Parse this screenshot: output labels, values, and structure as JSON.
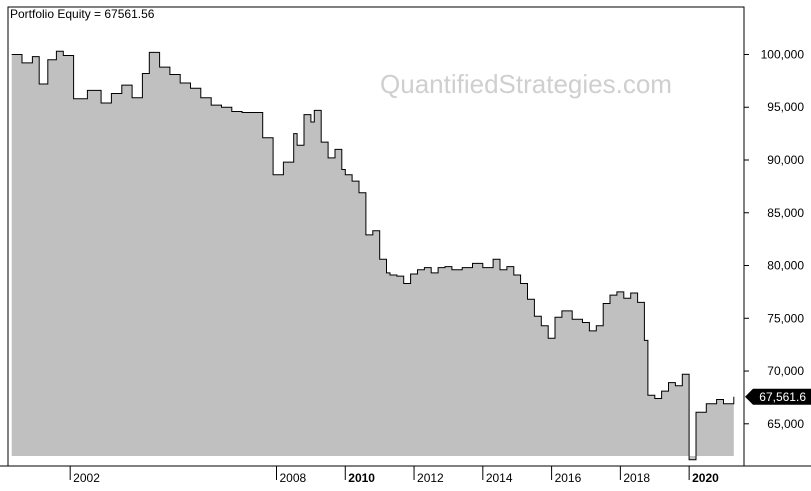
{
  "chart_data": {
    "type": "area",
    "title": "Portfolio Equity = 67561.56",
    "watermark": "QuantifiedStrategies.com",
    "last_value_label": "67,561.6",
    "xlabel": "",
    "ylabel": "",
    "x_ticks": [
      {
        "label": "2002",
        "x": 2002,
        "bold": false
      },
      {
        "label": "2008",
        "x": 2008,
        "bold": false
      },
      {
        "label": "2010",
        "x": 2010,
        "bold": true
      },
      {
        "label": "2012",
        "x": 2012,
        "bold": false
      },
      {
        "label": "2014",
        "x": 2014,
        "bold": false
      },
      {
        "label": "2016",
        "x": 2016,
        "bold": false
      },
      {
        "label": "2018",
        "x": 2018,
        "bold": false
      },
      {
        "label": "2020",
        "x": 2020,
        "bold": true
      }
    ],
    "y_ticks": [
      {
        "label": "100,000",
        "value": 100000
      },
      {
        "label": "95,000",
        "value": 95000
      },
      {
        "label": "90,000",
        "value": 90000
      },
      {
        "label": "85,000",
        "value": 85000
      },
      {
        "label": "80,000",
        "value": 80000
      },
      {
        "label": "75,000",
        "value": 75000
      },
      {
        "label": "70,000",
        "value": 70000
      },
      {
        "label": "65,000",
        "value": 65000
      }
    ],
    "ylim": [
      61000,
      104500
    ],
    "grid": false,
    "legend": "none",
    "colors": {
      "fill": "#c0c0c0",
      "line": "#000000",
      "badge": "#000000",
      "badge_text": "#ffffff",
      "watermark": "#cfcfcf"
    },
    "series": [
      {
        "x": [
          2000.3,
          2000.6,
          2000.9,
          2001.1,
          2001.35,
          2001.6,
          2001.8,
          2002.1,
          2002.5,
          2002.9,
          2003.2,
          2003.5,
          2003.8,
          2004.1,
          2004.3,
          2004.6,
          2004.9,
          2005.2,
          2005.5,
          2005.8,
          2006.1,
          2006.4,
          2006.7,
          2007.0,
          2007.3,
          2007.6,
          2007.9,
          2008.2,
          2008.5,
          2008.6,
          2008.8,
          2009.0,
          2009.1,
          2009.3,
          2009.5,
          2009.7,
          2009.9,
          2010.0,
          2010.2,
          2010.4,
          2010.6,
          2010.8,
          2011.0,
          2011.2,
          2011.3,
          2011.5,
          2011.7,
          2011.9,
          2012.1,
          2012.3,
          2012.5,
          2012.7,
          2012.9,
          2013.1,
          2013.4,
          2013.7,
          2014.0,
          2014.3,
          2014.5,
          2014.7,
          2014.9,
          2015.1,
          2015.3,
          2015.5,
          2015.7,
          2015.9,
          2016.1,
          2016.3,
          2016.6,
          2016.9,
          2017.1,
          2017.3,
          2017.5,
          2017.7,
          2017.9,
          2018.1,
          2018.3,
          2018.5,
          2018.7,
          2018.8,
          2019.0,
          2019.2,
          2019.4,
          2019.6,
          2019.8,
          2020.0,
          2020.2,
          2020.5,
          2020.8,
          2021.0,
          2021.3
        ],
        "values": [
          100000,
          99200,
          99800,
          97200,
          99500,
          100300,
          99900,
          95800,
          96600,
          95400,
          96300,
          97100,
          95900,
          98200,
          100200,
          98800,
          98100,
          97300,
          96800,
          95900,
          95200,
          95000,
          94600,
          94500,
          94500,
          92100,
          88600,
          89800,
          92500,
          91400,
          94300,
          93600,
          94700,
          91700,
          90200,
          91000,
          89100,
          88600,
          88000,
          86900,
          82900,
          83300,
          80600,
          79300,
          79100,
          79000,
          78300,
          79200,
          79600,
          79800,
          79300,
          79800,
          79900,
          79600,
          79800,
          80200,
          79800,
          80600,
          79600,
          79900,
          79100,
          78300,
          76800,
          75200,
          74300,
          73100,
          75100,
          75700,
          74900,
          74600,
          73800,
          74300,
          76400,
          77200,
          77500,
          76900,
          77400,
          76500,
          72900,
          67700,
          67400,
          68100,
          68900,
          68600,
          69700,
          61600,
          66100,
          66900,
          67300,
          66900,
          67561.6
        ]
      }
    ]
  }
}
